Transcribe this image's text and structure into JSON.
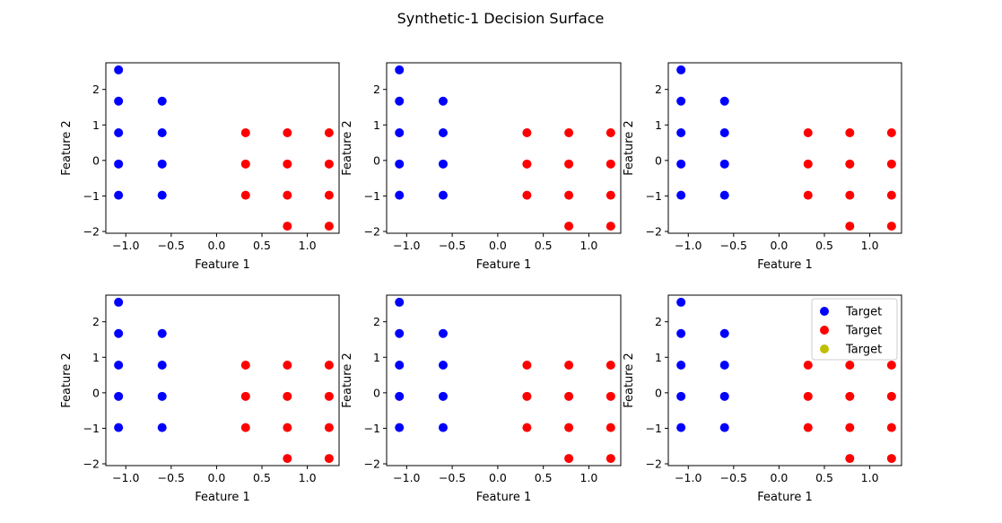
{
  "figure": {
    "title": "Synthetic-1 Decision Surface"
  },
  "chart_data": {
    "type": "scatter",
    "xlabel": "Feature 1",
    "ylabel": "Feature 2",
    "xlim": [
      -1.22,
      1.35
    ],
    "ylim": [
      -2.05,
      2.75
    ],
    "xticks": [
      -1.0,
      -0.5,
      0.0,
      0.5,
      1.0
    ],
    "xtick_labels": [
      "−1.0",
      "−0.5",
      "0.0",
      "0.5",
      "1.0"
    ],
    "yticks": [
      -2,
      -1,
      0,
      1,
      2
    ],
    "ytick_labels": [
      "−2",
      "−1",
      "0",
      "1",
      "2"
    ],
    "grid": false,
    "series": [
      {
        "name": "Target",
        "color": "#0000ff",
        "points": [
          [
            -1.08,
            2.55
          ],
          [
            -1.08,
            1.67
          ],
          [
            -1.08,
            0.78
          ],
          [
            -1.08,
            -0.1
          ],
          [
            -1.08,
            -0.98
          ],
          [
            -0.6,
            1.67
          ],
          [
            -0.6,
            0.78
          ],
          [
            -0.6,
            -0.1
          ],
          [
            -0.6,
            -0.98
          ]
        ]
      },
      {
        "name": "Target",
        "color": "#ff0000",
        "points": [
          [
            0.32,
            0.78
          ],
          [
            0.32,
            -0.1
          ],
          [
            0.32,
            -0.98
          ],
          [
            0.78,
            0.78
          ],
          [
            0.78,
            -0.1
          ],
          [
            0.78,
            -0.98
          ],
          [
            0.78,
            -1.85
          ],
          [
            1.24,
            0.78
          ],
          [
            1.24,
            -0.1
          ],
          [
            1.24,
            -0.98
          ],
          [
            1.24,
            -1.85
          ]
        ]
      },
      {
        "name": "Target",
        "color": "#bfbf00",
        "points": []
      }
    ],
    "panels": [
      {
        "id": "top-left",
        "legend": false
      },
      {
        "id": "top-middle",
        "legend": false
      },
      {
        "id": "top-right",
        "legend": false
      },
      {
        "id": "bottom-left",
        "legend": false
      },
      {
        "id": "bottom-middle",
        "legend": false
      },
      {
        "id": "bottom-right",
        "legend": true,
        "legend_loc": "upper right"
      }
    ]
  }
}
